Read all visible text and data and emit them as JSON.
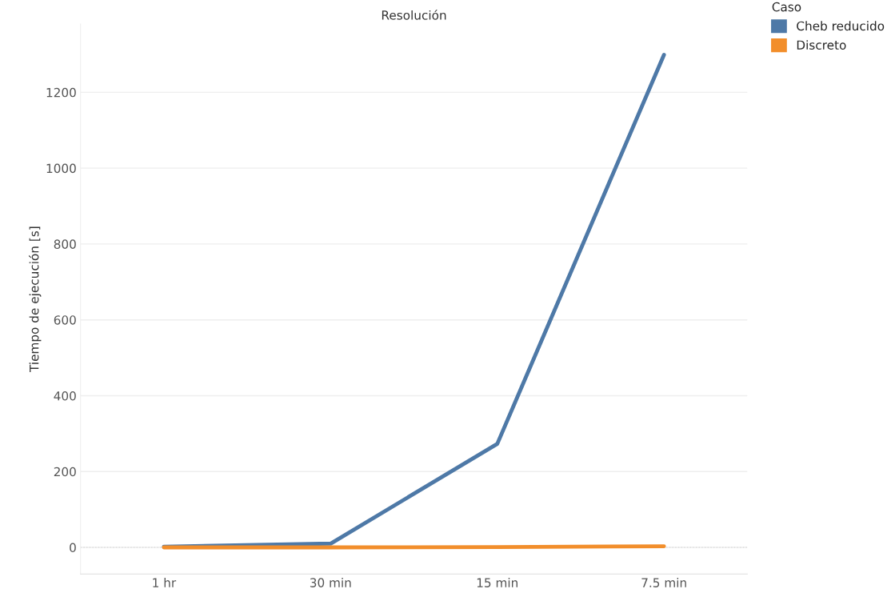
{
  "chart_data": {
    "type": "line",
    "xlabel": "Resolución",
    "ylabel": "Tiempo de ejecución [s]",
    "legend_title": "Caso",
    "categories": [
      "1 hr",
      "30 min",
      "15 min",
      "7.5 min"
    ],
    "series": [
      {
        "name": "Cheb reducido",
        "color": "#4e79a7",
        "values": [
          2,
          10,
          273,
          1299
        ]
      },
      {
        "name": "Discreto",
        "color": "#f28e2b",
        "values": [
          0,
          0,
          1,
          3
        ]
      }
    ],
    "ylim": [
      -70,
      1380
    ],
    "yticks": [
      0,
      200,
      400,
      600,
      800,
      1000,
      1200
    ],
    "grid": "y",
    "legend": "top right",
    "marker": "none",
    "line_style": "solid",
    "ref_lines": [
      {
        "axis": "y",
        "value": 0,
        "color": "#aaaaaa",
        "line_style": "dotted"
      }
    ]
  }
}
